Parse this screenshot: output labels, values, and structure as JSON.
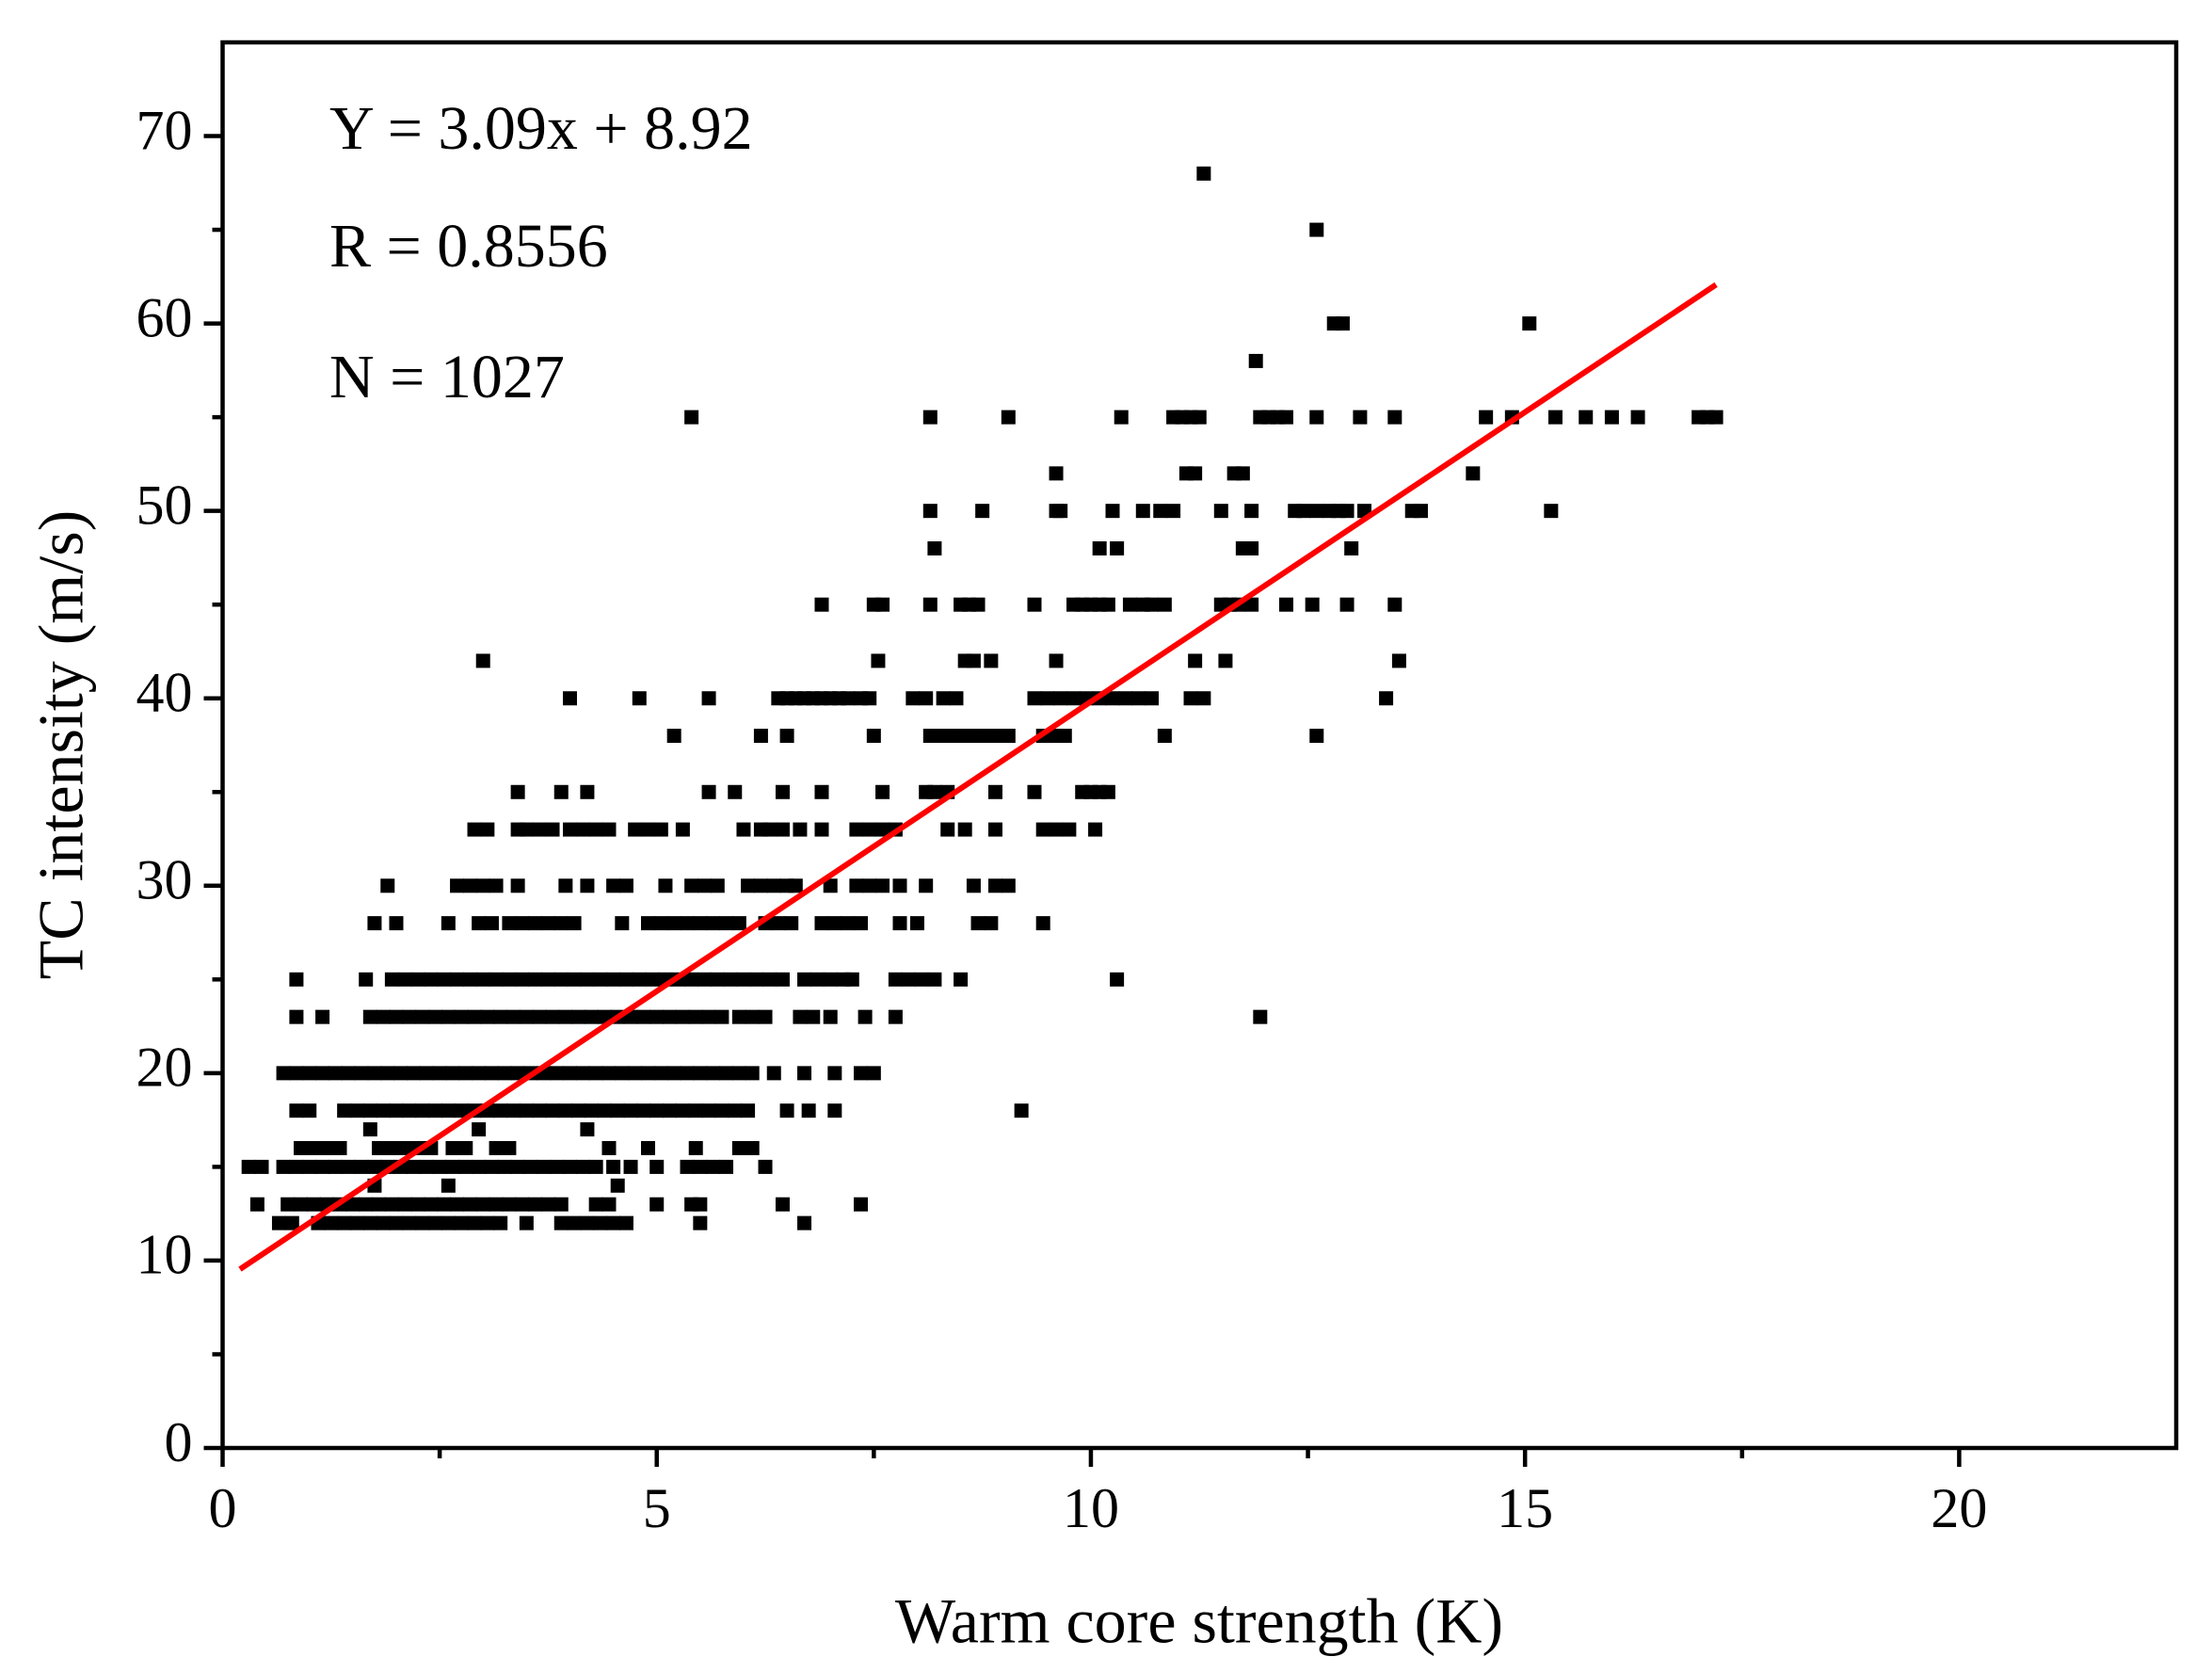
{
  "chart_data": {
    "type": "scatter",
    "xlabel": "Warm core strength (K)",
    "ylabel": "TC intensity (m/s)",
    "annotations": [
      "Y = 3.09x + 8.92",
      "R = 0.8556",
      "N = 1027"
    ],
    "xlim": [
      0,
      22.5
    ],
    "ylim": [
      0,
      75
    ],
    "xticks": [
      0,
      5,
      10,
      15,
      20
    ],
    "yticks": [
      0,
      10,
      20,
      30,
      40,
      50,
      60,
      70
    ],
    "xminorticks": [
      2.5,
      7.5,
      12.5,
      17.5
    ],
    "yminorticks": [
      5,
      15,
      25,
      35,
      45,
      55,
      65
    ],
    "marker_color": "#000000",
    "rows": [
      {
        "y": 68,
        "x": [
          11.3
        ]
      },
      {
        "y": 65,
        "x": [
          12.6
        ]
      },
      {
        "y": 60,
        "x": [
          12.8,
          12.9,
          15.05
        ]
      },
      {
        "y": 58,
        "x": [
          11.9
        ]
      },
      {
        "y": 55,
        "x": [
          5.4,
          8.15,
          9.05,
          10.35,
          10.95,
          11.05,
          11.15,
          11.25,
          11.95,
          12.05,
          12.15,
          12.25,
          12.6,
          13.1,
          13.5,
          14.55,
          14.85,
          15.35,
          15.7,
          16.0,
          16.3,
          17.0,
          17.1,
          17.2
        ]
      },
      {
        "y": 52,
        "x": [
          9.6,
          11.1,
          11.2,
          11.65,
          11.75,
          14.4
        ]
      },
      {
        "y": 50,
        "x": [
          8.15,
          8.75,
          9.6,
          9.65,
          10.25,
          10.6,
          10.8,
          10.95,
          11.5,
          11.85,
          12.35,
          12.45,
          12.6,
          12.75,
          12.85,
          12.95,
          13.15,
          13.7,
          13.8,
          15.3
        ]
      },
      {
        "y": 48,
        "x": [
          8.2,
          10.1,
          10.3,
          11.75,
          11.85,
          13.0
        ]
      },
      {
        "y": 45,
        "x": [
          6.9,
          7.5,
          7.6,
          8.15,
          8.5,
          8.6,
          8.7,
          9.35,
          9.8,
          9.9,
          10.0,
          10.1,
          10.2,
          10.45,
          10.6,
          10.7,
          10.85,
          11.5,
          11.6,
          11.7,
          11.85,
          12.25,
          12.55,
          12.95,
          13.5
        ]
      },
      {
        "y": 42,
        "x": [
          3.0,
          7.55,
          8.55,
          8.65,
          8.85,
          9.6,
          11.2,
          11.55,
          13.55
        ]
      },
      {
        "y": 40,
        "x": [
          4.0,
          4.8,
          5.6,
          6.4,
          6.5,
          6.6,
          6.7,
          6.8,
          6.9,
          7.0,
          7.1,
          7.2,
          7.35,
          7.45,
          7.95,
          8.1,
          8.3,
          8.45,
          9.35,
          9.5,
          9.65,
          9.8,
          9.95,
          10.1,
          10.25,
          10.4,
          10.55,
          10.7,
          11.15,
          11.3,
          13.4
        ]
      },
      {
        "y": 38,
        "x": [
          5.2,
          6.2,
          6.5,
          7.5,
          8.15,
          8.3,
          8.45,
          8.6,
          8.75,
          8.9,
          9.05,
          9.45,
          9.6,
          9.7,
          10.85,
          12.6
        ]
      },
      {
        "y": 35,
        "x": [
          3.4,
          3.9,
          4.2,
          5.6,
          5.9,
          6.45,
          6.9,
          7.6,
          8.1,
          8.2,
          8.35,
          8.9,
          9.35,
          9.9,
          10.0,
          10.1,
          10.2
        ]
      },
      {
        "y": 33,
        "x": [
          2.9,
          3.05,
          3.4,
          3.5,
          3.65,
          3.8,
          4.0,
          4.15,
          4.3,
          4.45,
          4.75,
          4.9,
          5.05,
          5.3,
          6.0,
          6.2,
          6.3,
          6.45,
          6.65,
          6.9,
          7.3,
          7.45,
          7.6,
          7.75,
          8.35,
          8.55,
          8.9,
          9.45,
          9.6,
          9.75,
          10.05
        ]
      },
      {
        "y": 30,
        "x": [
          1.9,
          2.7,
          2.85,
          3.0,
          3.15,
          3.4,
          3.95,
          4.2,
          4.5,
          4.65,
          5.1,
          5.4,
          5.55,
          5.7,
          6.05,
          6.2,
          6.35,
          6.5,
          6.6,
          7.0,
          7.3,
          7.45,
          7.6,
          7.8,
          8.1,
          8.65,
          8.9,
          9.05
        ]
      },
      {
        "y": 28,
        "x": [
          1.75,
          2.0,
          2.6,
          2.95,
          3.1,
          3.3,
          3.45,
          3.6,
          3.75,
          3.9,
          4.05,
          4.6,
          4.9,
          5.05,
          5.2,
          5.35,
          5.5,
          5.65,
          5.8,
          5.95,
          6.25,
          6.4,
          6.55,
          6.9,
          7.05,
          7.2,
          7.35,
          7.8,
          8.0,
          8.7,
          8.85,
          9.45
        ]
      },
      {
        "y": 25,
        "x": [
          0.85,
          1.65,
          1.95,
          2.1,
          2.25,
          2.4,
          2.55,
          2.7,
          2.85,
          3.0,
          3.15,
          3.3,
          3.45,
          3.6,
          3.75,
          3.9,
          4.05,
          4.2,
          4.35,
          4.5,
          4.65,
          4.8,
          4.95,
          5.1,
          5.25,
          5.4,
          5.55,
          5.7,
          5.85,
          6.0,
          6.15,
          6.3,
          6.45,
          6.7,
          6.85,
          7.0,
          7.15,
          7.25,
          7.75,
          7.9,
          8.05,
          8.2,
          8.5,
          10.3
        ]
      },
      {
        "y": 23,
        "x": [
          0.85,
          1.15,
          1.7,
          1.85,
          2.0,
          2.15,
          2.3,
          2.45,
          2.6,
          2.75,
          2.9,
          3.05,
          3.2,
          3.35,
          3.5,
          3.65,
          3.8,
          3.95,
          4.1,
          4.25,
          4.4,
          4.55,
          4.7,
          4.85,
          5.0,
          5.15,
          5.3,
          5.45,
          5.6,
          5.75,
          5.95,
          6.1,
          6.25,
          6.65,
          6.8,
          7.0,
          7.4,
          7.75,
          11.95
        ]
      },
      {
        "y": 20,
        "x": [
          0.7,
          0.85,
          1.0,
          1.15,
          1.3,
          1.45,
          1.6,
          1.75,
          1.9,
          2.05,
          2.2,
          2.35,
          2.5,
          2.65,
          2.8,
          2.95,
          3.1,
          3.25,
          3.4,
          3.55,
          3.7,
          3.85,
          4.0,
          4.15,
          4.3,
          4.45,
          4.6,
          4.75,
          4.9,
          5.05,
          5.2,
          5.35,
          5.5,
          5.65,
          5.8,
          5.95,
          6.1,
          6.35,
          6.7,
          7.05,
          7.35,
          7.5
        ]
      },
      {
        "y": 18,
        "x": [
          0.85,
          1.0,
          1.4,
          1.55,
          1.7,
          1.85,
          2.0,
          2.15,
          2.3,
          2.45,
          2.6,
          2.75,
          2.9,
          3.05,
          3.2,
          3.35,
          3.5,
          3.65,
          3.8,
          3.95,
          4.1,
          4.25,
          4.4,
          4.55,
          4.7,
          4.85,
          5.0,
          5.15,
          5.3,
          5.45,
          5.6,
          5.75,
          5.9,
          6.05,
          6.5,
          6.75,
          7.05,
          9.2
        ]
      },
      {
        "y": 17,
        "x": [
          1.7,
          2.95,
          4.2
        ]
      },
      {
        "y": 16,
        "x": [
          0.9,
          1.05,
          1.2,
          1.35,
          1.8,
          1.95,
          2.1,
          2.25,
          2.4,
          2.65,
          2.8,
          3.15,
          3.3,
          4.45,
          4.9,
          5.45,
          5.95,
          6.1
        ]
      },
      {
        "y": 15,
        "x": [
          0.3,
          0.45,
          0.7,
          0.85,
          1.0,
          1.15,
          1.3,
          1.45,
          1.6,
          1.75,
          1.9,
          2.05,
          2.2,
          2.35,
          2.5,
          2.65,
          2.8,
          2.95,
          3.1,
          3.25,
          3.4,
          3.55,
          3.7,
          3.85,
          4.0,
          4.15,
          4.3,
          4.5,
          4.7,
          5.0,
          5.35,
          5.5,
          5.65,
          5.8,
          6.25
        ]
      },
      {
        "y": 14,
        "x": [
          1.75,
          2.6,
          4.55
        ]
      },
      {
        "y": 13,
        "x": [
          0.4,
          0.75,
          0.9,
          1.05,
          1.2,
          1.35,
          1.5,
          1.65,
          1.8,
          1.95,
          2.1,
          2.25,
          2.4,
          2.55,
          2.7,
          2.85,
          3.0,
          3.15,
          3.3,
          3.45,
          3.6,
          3.75,
          3.9,
          4.3,
          4.45,
          5.0,
          5.4,
          5.5,
          6.45,
          7.35
        ]
      },
      {
        "y": 12,
        "x": [
          0.65,
          0.8,
          1.1,
          1.25,
          1.4,
          1.55,
          1.7,
          1.85,
          2.0,
          2.15,
          2.3,
          2.45,
          2.6,
          2.75,
          2.9,
          3.05,
          3.2,
          3.5,
          3.9,
          4.05,
          4.2,
          4.35,
          4.5,
          4.65,
          5.5,
          6.7
        ]
      }
    ],
    "fit_line": {
      "x": [
        0.2,
        17.2
      ],
      "values": [
        9.54,
        62.07
      ],
      "color": "#ff0000"
    }
  }
}
